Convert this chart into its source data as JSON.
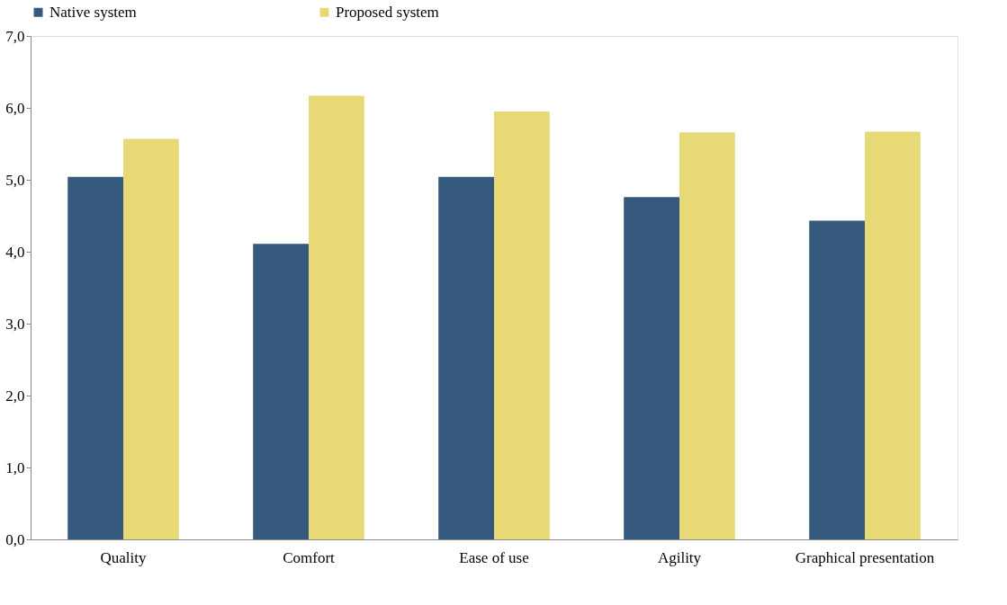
{
  "chart_data": {
    "type": "bar",
    "categories": [
      "Quality",
      "Comfort",
      "Ease of use",
      "Agility",
      "Graphical presentation"
    ],
    "series": [
      {
        "name": "Native system",
        "color": "#355a7e",
        "values": [
          5.04,
          4.11,
          5.04,
          4.76,
          4.43
        ]
      },
      {
        "name": "Proposed system",
        "color": "#e8d977",
        "values": [
          5.57,
          6.17,
          5.95,
          5.66,
          5.67
        ]
      }
    ],
    "ylim": [
      0,
      7
    ],
    "yticks": [
      {
        "value": 0,
        "label": "0,0"
      },
      {
        "value": 1,
        "label": "1,0"
      },
      {
        "value": 2,
        "label": "2,0"
      },
      {
        "value": 3,
        "label": "3,0"
      },
      {
        "value": 4,
        "label": "4,0"
      },
      {
        "value": 5,
        "label": "5,0"
      },
      {
        "value": 6,
        "label": "6,0"
      },
      {
        "value": 7,
        "label": "7,0"
      }
    ],
    "grid": false,
    "legend": "top"
  }
}
